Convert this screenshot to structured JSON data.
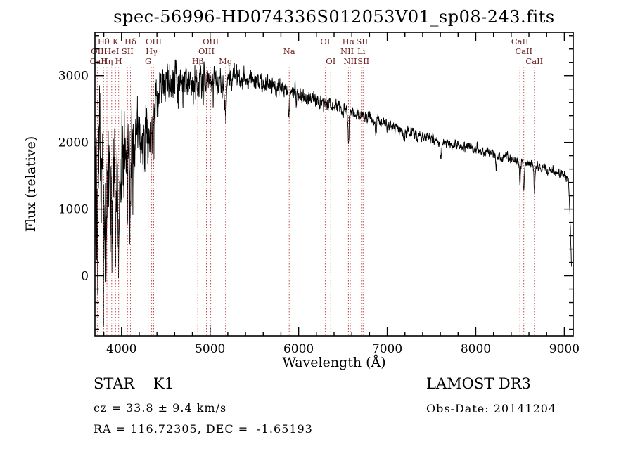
{
  "chart_data": {
    "type": "line",
    "title": "spec-56996-HD074336S012053V01_sp08-243.fits",
    "xlabel": "Wavelength (Å)",
    "ylabel": "Flux (relative)",
    "xlim": [
      3700,
      9100
    ],
    "ylim": [
      -900,
      3650
    ],
    "xticks": [
      4000,
      5000,
      6000,
      7000,
      8000,
      9000
    ],
    "yticks": [
      0,
      1000,
      2000,
      3000
    ],
    "x_minor_step": 200,
    "y_minor_step": 200,
    "data_range": [
      3700,
      9080
    ],
    "sample_step": 2,
    "seed": 20141204,
    "trace_color": "#000000",
    "line_marker_color": "#c34a4a",
    "line_label_color": "#6b2020",
    "continuum": [
      [
        3700,
        1150
      ],
      [
        3780,
        1300
      ],
      [
        3850,
        1380
      ],
      [
        3920,
        1480
      ],
      [
        4000,
        1700
      ],
      [
        4080,
        1820
      ],
      [
        4160,
        2050
      ],
      [
        4240,
        2120
      ],
      [
        4320,
        2250
      ],
      [
        4400,
        2600
      ],
      [
        4470,
        2880
      ],
      [
        4540,
        2970
      ],
      [
        4620,
        2900
      ],
      [
        4700,
        2920
      ],
      [
        4780,
        2950
      ],
      [
        4860,
        2960
      ],
      [
        4940,
        2980
      ],
      [
        5020,
        2950
      ],
      [
        5100,
        2900
      ],
      [
        5180,
        2910
      ],
      [
        5260,
        2960
      ],
      [
        5340,
        2950
      ],
      [
        5420,
        2920
      ],
      [
        5500,
        2900
      ],
      [
        5600,
        2870
      ],
      [
        5700,
        2850
      ],
      [
        5800,
        2830
      ],
      [
        5900,
        2760
      ],
      [
        6000,
        2720
      ],
      [
        6100,
        2670
      ],
      [
        6200,
        2620
      ],
      [
        6300,
        2570
      ],
      [
        6400,
        2520
      ],
      [
        6500,
        2470
      ],
      [
        6600,
        2430
      ],
      [
        6700,
        2400
      ],
      [
        6800,
        2360
      ],
      [
        6900,
        2310
      ],
      [
        7000,
        2260
      ],
      [
        7100,
        2220
      ],
      [
        7200,
        2170
      ],
      [
        7300,
        2130
      ],
      [
        7400,
        2090
      ],
      [
        7500,
        2050
      ],
      [
        7600,
        2010
      ],
      [
        7700,
        1980
      ],
      [
        7800,
        1950
      ],
      [
        7900,
        1930
      ],
      [
        8000,
        1900
      ],
      [
        8100,
        1860
      ],
      [
        8200,
        1820
      ],
      [
        8300,
        1780
      ],
      [
        8400,
        1750
      ],
      [
        8500,
        1700
      ],
      [
        8600,
        1670
      ],
      [
        8700,
        1640
      ],
      [
        8800,
        1610
      ],
      [
        8900,
        1570
      ],
      [
        9000,
        1520
      ],
      [
        9045,
        1460
      ],
      [
        9065,
        900
      ],
      [
        9080,
        80
      ]
    ],
    "noise_envelope": [
      [
        3700,
        1700
      ],
      [
        3760,
        1650
      ],
      [
        3800,
        1500
      ],
      [
        3850,
        1350
      ],
      [
        3900,
        1200
      ],
      [
        3950,
        1050
      ],
      [
        4000,
        850
      ],
      [
        4100,
        680
      ],
      [
        4200,
        580
      ],
      [
        4300,
        520
      ],
      [
        4400,
        460
      ],
      [
        4500,
        390
      ],
      [
        4600,
        350
      ],
      [
        4800,
        300
      ],
      [
        5000,
        250
      ],
      [
        5200,
        220
      ],
      [
        5400,
        200
      ],
      [
        5600,
        185
      ],
      [
        5900,
        165
      ],
      [
        6200,
        145
      ],
      [
        6500,
        125
      ],
      [
        7000,
        105
      ],
      [
        7500,
        95
      ],
      [
        8000,
        90
      ],
      [
        8500,
        90
      ],
      [
        9000,
        80
      ]
    ],
    "absorption_lines": [
      [
        3727,
        350,
        4
      ],
      [
        3798,
        420,
        4
      ],
      [
        3835,
        480,
        4
      ],
      [
        3889,
        500,
        4
      ],
      [
        3933,
        900,
        5
      ],
      [
        3968,
        850,
        5
      ],
      [
        4068,
        350,
        4
      ],
      [
        4101,
        500,
        5
      ],
      [
        4227,
        300,
        4
      ],
      [
        4300,
        380,
        8
      ],
      [
        4340,
        430,
        5
      ],
      [
        4861,
        430,
        5
      ],
      [
        5175,
        430,
        9
      ],
      [
        5893,
        380,
        6
      ],
      [
        6563,
        430,
        5
      ],
      [
        6870,
        190,
        7
      ],
      [
        7190,
        160,
        7
      ],
      [
        7605,
        230,
        8
      ],
      [
        8230,
        150,
        7
      ],
      [
        8498,
        300,
        5
      ],
      [
        8542,
        440,
        6
      ],
      [
        8662,
        400,
        6
      ]
    ],
    "spectral_line_markers": [
      3727,
      3798,
      3835,
      3889,
      3933,
      3968,
      4068,
      4101,
      4300,
      4340,
      4363,
      4861,
      4959,
      5007,
      5175,
      5893,
      6300,
      6363,
      6548,
      6563,
      6583,
      6708,
      6716,
      6731,
      8498,
      8542,
      8662
    ],
    "line_labels": [
      {
        "text": "Hθ",
        "wavelength": 3798,
        "row": 1
      },
      {
        "text": "K",
        "wavelength": 3933,
        "row": 1
      },
      {
        "text": "Hδ",
        "wavelength": 4101,
        "row": 1
      },
      {
        "text": "OIII",
        "wavelength": 4363,
        "row": 1
      },
      {
        "text": "OIII",
        "wavelength": 5007,
        "row": 1
      },
      {
        "text": "OI",
        "wavelength": 6300,
        "row": 1
      },
      {
        "text": "Hα",
        "wavelength": 6563,
        "row": 1
      },
      {
        "text": "SII",
        "wavelength": 6716,
        "row": 1
      },
      {
        "text": "CaII",
        "wavelength": 8498,
        "row": 1
      },
      {
        "text": "OII",
        "wavelength": 3727,
        "row": 2
      },
      {
        "text": "HeI",
        "wavelength": 3889,
        "row": 2
      },
      {
        "text": "SII",
        "wavelength": 4068,
        "row": 2
      },
      {
        "text": "Hγ",
        "wavelength": 4340,
        "row": 2
      },
      {
        "text": "OIII",
        "wavelength": 4959,
        "row": 2
      },
      {
        "text": "Na",
        "wavelength": 5893,
        "row": 2
      },
      {
        "text": "NII",
        "wavelength": 6548,
        "row": 2
      },
      {
        "text": "Li",
        "wavelength": 6708,
        "row": 2
      },
      {
        "text": "CaII",
        "wavelength": 8542,
        "row": 2
      },
      {
        "text": "CaII",
        "wavelength": 3740,
        "row": 3
      },
      {
        "text": "Hη",
        "wavelength": 3835,
        "row": 3
      },
      {
        "text": "H",
        "wavelength": 3968,
        "row": 3
      },
      {
        "text": "G",
        "wavelength": 4300,
        "row": 3
      },
      {
        "text": "Hβ",
        "wavelength": 4861,
        "row": 3
      },
      {
        "text": "Mg",
        "wavelength": 5175,
        "row": 3
      },
      {
        "text": "OI",
        "wavelength": 6363,
        "row": 3
      },
      {
        "text": "NII",
        "wavelength": 6583,
        "row": 3
      },
      {
        "text": "SII",
        "wavelength": 6731,
        "row": 3
      },
      {
        "text": "CaII",
        "wavelength": 8662,
        "row": 3
      }
    ]
  },
  "annotations": {
    "class_line": "STAR    K1",
    "survey": "LAMOST DR3",
    "cz_line": "cz = 33.8 ± 9.4 km/s",
    "obs_date": "Obs-Date: 20141204",
    "ra_dec": "RA = 116.72305, DEC =  -1.65193"
  }
}
